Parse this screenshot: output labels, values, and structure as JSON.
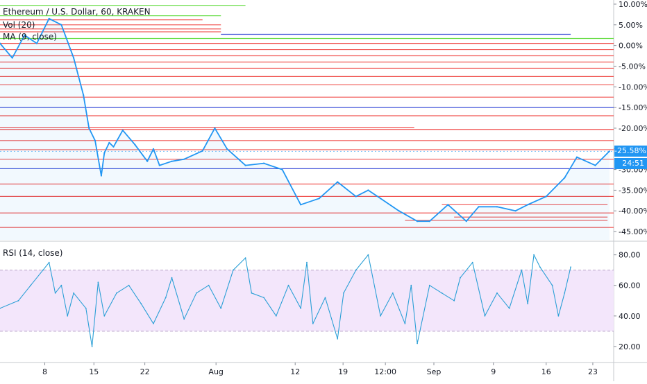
{
  "legend": {
    "title": "Ethereum / U.S. Dollar, 60, KRAKEN",
    "vol": "Vol (20)",
    "ma": "MA (9, close)",
    "rsi": "RSI (14, close)"
  },
  "price_tags": {
    "last_change": "-25.58%",
    "countdown": "24:51"
  },
  "colors": {
    "price_line": "#2196f3",
    "rsi_line": "#2a9fd6",
    "level_red": "#f05350",
    "level_blue": "#3f51d8",
    "level_green": "#66dd44",
    "rsi_band": "#f3e6fb",
    "tag_blue": "#2196f3"
  },
  "chart_data": [
    {
      "type": "line",
      "name": "price-pane",
      "y_unit": "percent change",
      "yticks": [
        "10.00%",
        "5.00%",
        "0.00%",
        "-5.00%",
        "-10.00%",
        "-15.00%",
        "-20.00%",
        "-25.00%",
        "-30.00%",
        "-35.00%",
        "-40.00%",
        "-45.00%"
      ],
      "ylim": [
        -47,
        11
      ],
      "xlim": [
        0,
        100
      ],
      "x": [
        0,
        2,
        4,
        6,
        8,
        10,
        12,
        13.6,
        14.5,
        15.5,
        16.5,
        17,
        17.8,
        18.5,
        20,
        22,
        24,
        25,
        26,
        28,
        30,
        33,
        35,
        37,
        40,
        43,
        46,
        49,
        52,
        55,
        58,
        60,
        62,
        65,
        68,
        70,
        73,
        76,
        78,
        81,
        84,
        86,
        89,
        92,
        94,
        97,
        99.3
      ],
      "values": [
        0.5,
        -3,
        2.5,
        0.5,
        6.5,
        5,
        -3,
        -12,
        -20,
        -23,
        -31.5,
        -26,
        -23.5,
        -24.5,
        -20.5,
        -24,
        -28,
        -25,
        -29,
        -28,
        -27.5,
        -25.5,
        -20,
        -25,
        -29,
        -28.5,
        -30,
        -38.5,
        -37,
        -33,
        -36.5,
        -35,
        -37,
        -40,
        -42.5,
        -42.5,
        -38.5,
        -42.5,
        -39,
        -39,
        -40,
        -38.5,
        -36.5,
        -32,
        -27,
        -29,
        -25.6
      ],
      "levels": [
        {
          "value": 9.7,
          "x_start": 0,
          "x_end": 40,
          "color": "green"
        },
        {
          "value": 7.2,
          "x_start": 0,
          "x_end": 36,
          "color": "green"
        },
        {
          "value": 6.2,
          "x_start": 0,
          "x_end": 33,
          "color": "red"
        },
        {
          "value": 5.0,
          "x_start": 0,
          "x_end": 36,
          "color": "red"
        },
        {
          "value": 4.0,
          "x_start": 0,
          "x_end": 36,
          "color": "red"
        },
        {
          "value": 3.3,
          "x_start": 0,
          "x_end": 36,
          "color": "red"
        },
        {
          "value": 2.7,
          "x_start": 36,
          "x_end": 93,
          "color": "blue"
        },
        {
          "value": 1.7,
          "x_start": 0,
          "x_end": 100,
          "color": "green"
        },
        {
          "value": 0.5,
          "x_start": 0,
          "x_end": 100,
          "color": "red"
        },
        {
          "value": -1.0,
          "x_start": 0,
          "x_end": 100,
          "color": "red"
        },
        {
          "value": -2.5,
          "x_start": 0,
          "x_end": 100,
          "color": "red"
        },
        {
          "value": -4.0,
          "x_start": 0,
          "x_end": 100,
          "color": "red"
        },
        {
          "value": -5.5,
          "x_start": 0,
          "x_end": 100,
          "color": "red"
        },
        {
          "value": -7.5,
          "x_start": 0,
          "x_end": 100,
          "color": "red"
        },
        {
          "value": -9.5,
          "x_start": 0,
          "x_end": 100,
          "color": "red"
        },
        {
          "value": -12.5,
          "x_start": 0,
          "x_end": 100,
          "color": "red"
        },
        {
          "value": -15.0,
          "x_start": 0,
          "x_end": 100,
          "color": "blue"
        },
        {
          "value": -17.0,
          "x_start": 0,
          "x_end": 100,
          "color": "red"
        },
        {
          "value": -19.8,
          "x_start": 0,
          "x_end": 67.5,
          "color": "red"
        },
        {
          "value": -20.3,
          "x_start": 0,
          "x_end": 100,
          "color": "red"
        },
        {
          "value": -23.0,
          "x_start": 0,
          "x_end": 100,
          "color": "red"
        },
        {
          "value": -25.2,
          "x_start": 0,
          "x_end": 100,
          "color": "red"
        },
        {
          "value": -27.5,
          "x_start": 0,
          "x_end": 100,
          "color": "red"
        },
        {
          "value": -29.8,
          "x_start": 0,
          "x_end": 100,
          "color": "blue"
        },
        {
          "value": -33.5,
          "x_start": 0,
          "x_end": 100,
          "color": "red"
        },
        {
          "value": -36.5,
          "x_start": 0,
          "x_end": 100,
          "color": "red"
        },
        {
          "value": -38.5,
          "x_start": 72,
          "x_end": 99,
          "color": "red"
        },
        {
          "value": -40.5,
          "x_start": 0,
          "x_end": 100,
          "color": "red"
        },
        {
          "value": -41.5,
          "x_start": 74,
          "x_end": 99,
          "color": "red"
        },
        {
          "value": -42.3,
          "x_start": 66,
          "x_end": 99,
          "color": "red"
        },
        {
          "value": -44.0,
          "x_start": 0,
          "x_end": 100,
          "color": "red"
        }
      ]
    },
    {
      "type": "line",
      "name": "rsi-pane",
      "yticks": [
        "80.00",
        "60.00",
        "40.00",
        "20.00"
      ],
      "ylim": [
        10,
        88
      ],
      "band": [
        30,
        70
      ],
      "xlim": [
        0,
        100
      ],
      "x": [
        0,
        3,
        5,
        7,
        8,
        9,
        10,
        11,
        12,
        14,
        15,
        16,
        17,
        19,
        21,
        23,
        25,
        27,
        28,
        30,
        32,
        34,
        36,
        38,
        40,
        41,
        43,
        45,
        47,
        49,
        50,
        51,
        53,
        55,
        56,
        58,
        60,
        62,
        64,
        66,
        67,
        68,
        70,
        72,
        74,
        75,
        77,
        79,
        81,
        83,
        85,
        86,
        87,
        88,
        90,
        91,
        92,
        93
      ],
      "values": [
        45,
        50,
        60,
        70,
        75,
        55,
        60,
        40,
        55,
        45,
        20,
        62,
        40,
        55,
        60,
        48,
        35,
        52,
        65,
        38,
        55,
        60,
        45,
        70,
        78,
        55,
        52,
        40,
        60,
        45,
        75,
        35,
        52,
        25,
        55,
        70,
        80,
        40,
        55,
        35,
        60,
        22,
        60,
        55,
        50,
        65,
        75,
        40,
        55,
        45,
        70,
        48,
        80,
        72,
        60,
        40,
        55,
        72
      ]
    }
  ],
  "x_axis": {
    "ticks": [
      {
        "label": "8",
        "pos": 7.3
      },
      {
        "label": "15",
        "pos": 15.3
      },
      {
        "label": "22",
        "pos": 23.6
      },
      {
        "label": "Aug",
        "pos": 35.2
      },
      {
        "label": "12",
        "pos": 48.1
      },
      {
        "label": "19",
        "pos": 55.9
      },
      {
        "label": "12:00",
        "pos": 62.8
      },
      {
        "label": "Sep",
        "pos": 70.7
      },
      {
        "label": "9",
        "pos": 80.4
      },
      {
        "label": "16",
        "pos": 89.0
      },
      {
        "label": "23",
        "pos": 96.6
      }
    ]
  }
}
